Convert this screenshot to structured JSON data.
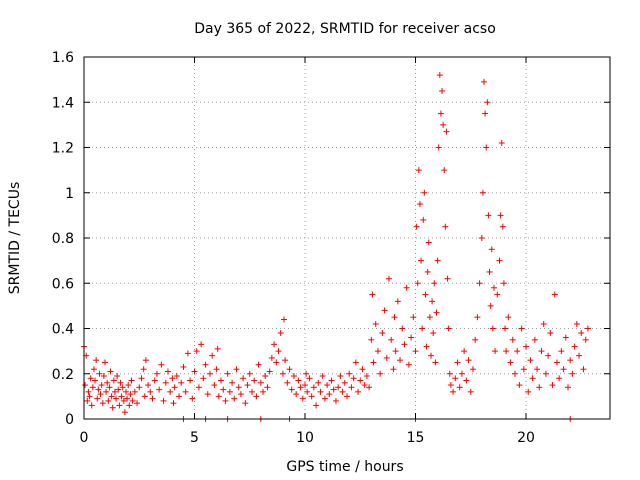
{
  "chart_data": {
    "type": "scatter",
    "title": "Day 365 of 2022, SRMTID for receiver acso",
    "xlabel": "GPS time / hours",
    "ylabel": "SRMTID / TECUs",
    "xlim": [
      0,
      23.8
    ],
    "ylim": [
      0,
      1.6
    ],
    "xticks": [
      0,
      5,
      10,
      15,
      20
    ],
    "xtick_labels": [
      "0",
      "5",
      "10",
      "15",
      "20"
    ],
    "yticks": [
      0,
      0.2,
      0.4,
      0.6,
      0.8,
      1,
      1.2,
      1.4,
      1.6
    ],
    "ytick_labels": [
      "0",
      "0.2",
      "0.4",
      "0.6",
      "0.8",
      "1",
      "1.2",
      "1.4",
      "1.6"
    ],
    "grid": true,
    "marker": "plus",
    "series_color": "#ff0000",
    "series": [
      {
        "name": "SRMTID",
        "points": [
          [
            0.0,
            0.32
          ],
          [
            0.05,
            0.15
          ],
          [
            0.1,
            0.28
          ],
          [
            0.15,
            0.08
          ],
          [
            0.2,
            0.12
          ],
          [
            0.25,
            0.1
          ],
          [
            0.3,
            0.18
          ],
          [
            0.35,
            0.06
          ],
          [
            0.4,
            0.14
          ],
          [
            0.45,
            0.22
          ],
          [
            0.5,
            0.17
          ],
          [
            0.55,
            0.26
          ],
          [
            0.6,
            0.09
          ],
          [
            0.65,
            0.13
          ],
          [
            0.7,
            0.2
          ],
          [
            0.75,
            0.11
          ],
          [
            0.8,
            0.15
          ],
          [
            0.85,
            0.07
          ],
          [
            0.9,
            0.19
          ],
          [
            0.95,
            0.25
          ],
          [
            1.0,
            0.12
          ],
          [
            1.05,
            0.16
          ],
          [
            1.1,
            0.08
          ],
          [
            1.15,
            0.14
          ],
          [
            1.2,
            0.21
          ],
          [
            1.25,
            0.1
          ],
          [
            1.3,
            0.05
          ],
          [
            1.35,
            0.17
          ],
          [
            1.4,
            0.12
          ],
          [
            1.45,
            0.09
          ],
          [
            1.5,
            0.19
          ],
          [
            1.55,
            0.13
          ],
          [
            1.6,
            0.06
          ],
          [
            1.65,
            0.16
          ],
          [
            1.7,
            0.1
          ],
          [
            1.75,
            0.14
          ],
          [
            1.8,
            0.08
          ],
          [
            1.85,
            0.03
          ],
          [
            1.9,
            0.12
          ],
          [
            1.95,
            0.09
          ],
          [
            2.0,
            0.15
          ],
          [
            2.05,
            0.06
          ],
          [
            2.1,
            0.11
          ],
          [
            2.15,
            0.17
          ],
          [
            2.2,
            0.08
          ],
          [
            2.3,
            0.12
          ],
          [
            2.4,
            0.07
          ],
          [
            2.5,
            0.14
          ],
          [
            2.6,
            0.18
          ],
          [
            2.7,
            0.22
          ],
          [
            2.75,
            0.1
          ],
          [
            2.8,
            0.26
          ],
          [
            2.9,
            0.15
          ],
          [
            3.0,
            0.12
          ],
          [
            3.1,
            0.09
          ],
          [
            3.2,
            0.17
          ],
          [
            3.3,
            0.2
          ],
          [
            3.4,
            0.13
          ],
          [
            3.5,
            0.24
          ],
          [
            3.6,
            0.08
          ],
          [
            3.7,
            0.16
          ],
          [
            3.8,
            0.21
          ],
          [
            3.9,
            0.12
          ],
          [
            4.0,
            0.18
          ],
          [
            4.05,
            0.07
          ],
          [
            4.1,
            0.14
          ],
          [
            4.2,
            0.19
          ],
          [
            4.3,
            0.1
          ],
          [
            4.4,
            0.16
          ],
          [
            4.5,
            0.23
          ],
          [
            4.6,
            0.12
          ],
          [
            4.7,
            0.29
          ],
          [
            4.8,
            0.17
          ],
          [
            4.9,
            0.09
          ],
          [
            5.0,
            0.21
          ],
          [
            5.1,
            0.3
          ],
          [
            5.2,
            0.14
          ],
          [
            5.3,
            0.33
          ],
          [
            5.4,
            0.18
          ],
          [
            5.5,
            0.24
          ],
          [
            5.6,
            0.11
          ],
          [
            5.7,
            0.2
          ],
          [
            5.8,
            0.28
          ],
          [
            5.9,
            0.15
          ],
          [
            6.0,
            0.22
          ],
          [
            6.05,
            0.31
          ],
          [
            6.1,
            0.1
          ],
          [
            6.2,
            0.17
          ],
          [
            6.3,
            0.13
          ],
          [
            6.4,
            0.08
          ],
          [
            6.5,
            0.2
          ],
          [
            6.6,
            0.12
          ],
          [
            6.7,
            0.16
          ],
          [
            6.8,
            0.09
          ],
          [
            6.9,
            0.22
          ],
          [
            7.0,
            0.14
          ],
          [
            7.1,
            0.11
          ],
          [
            7.2,
            0.18
          ],
          [
            7.3,
            0.07
          ],
          [
            7.4,
            0.15
          ],
          [
            7.5,
            0.2
          ],
          [
            7.6,
            0.12
          ],
          [
            7.7,
            0.17
          ],
          [
            7.8,
            0.1
          ],
          [
            7.9,
            0.24
          ],
          [
            8.0,
            0.16
          ],
          [
            8.1,
            0.12
          ],
          [
            8.2,
            0.19
          ],
          [
            8.3,
            0.14
          ],
          [
            8.4,
            0.21
          ],
          [
            8.5,
            0.27
          ],
          [
            8.6,
            0.33
          ],
          [
            8.7,
            0.25
          ],
          [
            8.8,
            0.3
          ],
          [
            8.9,
            0.38
          ],
          [
            9.0,
            0.2
          ],
          [
            9.05,
            0.44
          ],
          [
            9.1,
            0.26
          ],
          [
            9.2,
            0.16
          ],
          [
            9.3,
            0.22
          ],
          [
            9.4,
            0.13
          ],
          [
            9.5,
            0.19
          ],
          [
            9.6,
            0.11
          ],
          [
            9.7,
            0.17
          ],
          [
            9.8,
            0.14
          ],
          [
            9.9,
            0.09
          ],
          [
            10.0,
            0.15
          ],
          [
            10.05,
            0.2
          ],
          [
            10.1,
            0.12
          ],
          [
            10.2,
            0.18
          ],
          [
            10.3,
            0.1
          ],
          [
            10.4,
            0.14
          ],
          [
            10.5,
            0.06
          ],
          [
            10.6,
            0.16
          ],
          [
            10.7,
            0.12
          ],
          [
            10.8,
            0.19
          ],
          [
            10.9,
            0.09
          ],
          [
            11.0,
            0.15
          ],
          [
            11.1,
            0.11
          ],
          [
            11.2,
            0.17
          ],
          [
            11.3,
            0.13
          ],
          [
            11.4,
            0.08
          ],
          [
            11.5,
            0.14
          ],
          [
            11.6,
            0.19
          ],
          [
            11.7,
            0.12
          ],
          [
            11.8,
            0.16
          ],
          [
            11.9,
            0.1
          ],
          [
            12.0,
            0.2
          ],
          [
            12.1,
            0.14
          ],
          [
            12.2,
            0.18
          ],
          [
            12.3,
            0.25
          ],
          [
            12.4,
            0.12
          ],
          [
            12.5,
            0.17
          ],
          [
            12.6,
            0.22
          ],
          [
            12.7,
            0.15
          ],
          [
            12.8,
            0.19
          ],
          [
            12.9,
            0.14
          ],
          [
            13.0,
            0.35
          ],
          [
            13.05,
            0.55
          ],
          [
            13.1,
            0.25
          ],
          [
            13.2,
            0.42
          ],
          [
            13.3,
            0.3
          ],
          [
            13.4,
            0.2
          ],
          [
            13.5,
            0.38
          ],
          [
            13.6,
            0.48
          ],
          [
            13.7,
            0.27
          ],
          [
            13.8,
            0.62
          ],
          [
            13.9,
            0.35
          ],
          [
            14.0,
            0.22
          ],
          [
            14.05,
            0.45
          ],
          [
            14.1,
            0.3
          ],
          [
            14.2,
            0.52
          ],
          [
            14.3,
            0.26
          ],
          [
            14.4,
            0.4
          ],
          [
            14.5,
            0.33
          ],
          [
            14.6,
            0.58
          ],
          [
            14.7,
            0.24
          ],
          [
            14.8,
            0.36
          ],
          [
            14.9,
            0.45
          ],
          [
            15.0,
            0.3
          ],
          [
            15.05,
            0.85
          ],
          [
            15.1,
            0.6
          ],
          [
            15.15,
            1.1
          ],
          [
            15.2,
            0.95
          ],
          [
            15.25,
            0.7
          ],
          [
            15.3,
            0.4
          ],
          [
            15.35,
            0.88
          ],
          [
            15.4,
            1.0
          ],
          [
            15.45,
            0.55
          ],
          [
            15.5,
            0.32
          ],
          [
            15.55,
            0.65
          ],
          [
            15.6,
            0.78
          ],
          [
            15.65,
            0.45
          ],
          [
            15.7,
            0.28
          ],
          [
            15.75,
            0.52
          ],
          [
            15.8,
            0.38
          ],
          [
            15.85,
            0.6
          ],
          [
            15.9,
            0.25
          ],
          [
            15.95,
            0.47
          ],
          [
            16.0,
            0.7
          ],
          [
            16.05,
            1.2
          ],
          [
            16.1,
            1.52
          ],
          [
            16.15,
            1.35
          ],
          [
            16.2,
            1.45
          ],
          [
            16.25,
            1.3
          ],
          [
            16.3,
            1.1
          ],
          [
            16.35,
            0.85
          ],
          [
            16.4,
            1.27
          ],
          [
            16.45,
            0.62
          ],
          [
            16.5,
            0.4
          ],
          [
            16.55,
            0.2
          ],
          [
            16.6,
            0.15
          ],
          [
            16.7,
            0.12
          ],
          [
            16.8,
            0.18
          ],
          [
            16.9,
            0.25
          ],
          [
            17.0,
            0.14
          ],
          [
            17.1,
            0.2
          ],
          [
            17.2,
            0.3
          ],
          [
            17.3,
            0.17
          ],
          [
            17.4,
            0.26
          ],
          [
            17.5,
            0.12
          ],
          [
            17.6,
            0.22
          ],
          [
            17.7,
            0.35
          ],
          [
            17.8,
            0.45
          ],
          [
            17.9,
            0.6
          ],
          [
            18.0,
            0.8
          ],
          [
            18.05,
            1.0
          ],
          [
            18.1,
            1.49
          ],
          [
            18.15,
            1.35
          ],
          [
            18.2,
            1.2
          ],
          [
            18.25,
            1.4
          ],
          [
            18.3,
            0.9
          ],
          [
            18.35,
            0.65
          ],
          [
            18.4,
            0.5
          ],
          [
            18.45,
            0.75
          ],
          [
            18.5,
            0.4
          ],
          [
            18.55,
            0.58
          ],
          [
            18.6,
            0.3
          ],
          [
            18.7,
            0.55
          ],
          [
            18.8,
            0.7
          ],
          [
            18.85,
            0.9
          ],
          [
            18.9,
            1.22
          ],
          [
            18.95,
            0.85
          ],
          [
            19.0,
            0.6
          ],
          [
            19.05,
            0.4
          ],
          [
            19.1,
            0.3
          ],
          [
            19.2,
            0.45
          ],
          [
            19.3,
            0.25
          ],
          [
            19.4,
            0.35
          ],
          [
            19.5,
            0.2
          ],
          [
            19.6,
            0.3
          ],
          [
            19.7,
            0.15
          ],
          [
            19.8,
            0.4
          ],
          [
            19.9,
            0.22
          ],
          [
            20.0,
            0.32
          ],
          [
            20.1,
            0.12
          ],
          [
            20.2,
            0.26
          ],
          [
            20.3,
            0.18
          ],
          [
            20.4,
            0.35
          ],
          [
            20.5,
            0.22
          ],
          [
            20.6,
            0.14
          ],
          [
            20.7,
            0.3
          ],
          [
            20.8,
            0.42
          ],
          [
            20.9,
            0.2
          ],
          [
            21.0,
            0.28
          ],
          [
            21.1,
            0.38
          ],
          [
            21.2,
            0.15
          ],
          [
            21.3,
            0.55
          ],
          [
            21.4,
            0.25
          ],
          [
            21.5,
            0.18
          ],
          [
            21.6,
            0.3
          ],
          [
            21.7,
            0.22
          ],
          [
            21.8,
            0.36
          ],
          [
            21.9,
            0.14
          ],
          [
            22.0,
            0.26
          ],
          [
            22.1,
            0.2
          ],
          [
            22.2,
            0.32
          ],
          [
            22.3,
            0.42
          ],
          [
            22.4,
            0.28
          ],
          [
            22.5,
            0.38
          ],
          [
            22.6,
            0.22
          ],
          [
            22.7,
            0.35
          ],
          [
            22.8,
            0.4
          ],
          [
            4.5,
            0.0
          ],
          [
            5.5,
            0.0
          ],
          [
            6.5,
            0.0
          ],
          [
            8.0,
            0.0
          ],
          [
            9.3,
            0.0
          ],
          [
            15.0,
            0.0
          ],
          [
            22.0,
            0.0
          ]
        ]
      }
    ]
  }
}
